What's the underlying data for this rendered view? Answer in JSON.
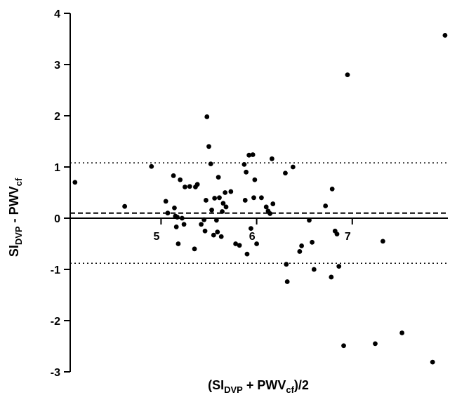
{
  "chart_data": {
    "type": "scatter",
    "title": "",
    "xlabel": "(SI_DVP + PWV_cf)/2",
    "ylabel": "SI_DVP - PWV_cf",
    "xlabel_parts": {
      "open": "(SI",
      "sub1": "DVP",
      "mid": " + PWV",
      "sub2": "cf",
      "close": ")/2"
    },
    "ylabel_parts": {
      "main1": "SI",
      "sub1": "DVP",
      "mid": " - PWV",
      "sub2": "cf"
    },
    "xlim": [
      4.05,
      8.0
    ],
    "ylim": [
      -3.0,
      4.0
    ],
    "x_ticks": [
      5,
      6,
      7
    ],
    "x_tick_labels": [
      "5",
      "6",
      "7"
    ],
    "y_ticks": [
      -3,
      -2,
      -1,
      0,
      1,
      2,
      3,
      4
    ],
    "y_tick_labels": [
      "-3",
      "-2",
      "-1",
      "0",
      "1",
      "2",
      "3",
      "4"
    ],
    "grid": false,
    "legend": "none",
    "reference_lines": [
      {
        "name": "upper limit of agreement",
        "y": 1.08,
        "style": "dotted"
      },
      {
        "name": "mean difference",
        "y": 0.1,
        "style": "dashed"
      },
      {
        "name": "lower limit of agreement",
        "y": -0.88,
        "style": "dotted"
      },
      {
        "name": "zero line",
        "y": 0.0,
        "style": "solid"
      }
    ],
    "points": [
      {
        "x": 4.1,
        "y": 0.7
      },
      {
        "x": 4.62,
        "y": 0.23
      },
      {
        "x": 4.9,
        "y": 1.01
      },
      {
        "x": 5.05,
        "y": 0.33
      },
      {
        "x": 5.07,
        "y": 0.1
      },
      {
        "x": 5.13,
        "y": 0.83
      },
      {
        "x": 5.14,
        "y": 0.2
      },
      {
        "x": 5.15,
        "y": 0.04
      },
      {
        "x": 5.16,
        "y": -0.17
      },
      {
        "x": 5.17,
        "y": 0.02
      },
      {
        "x": 5.18,
        "y": -0.5
      },
      {
        "x": 5.2,
        "y": 0.75
      },
      {
        "x": 5.22,
        "y": 0.0
      },
      {
        "x": 5.24,
        "y": -0.12
      },
      {
        "x": 5.25,
        "y": 0.61
      },
      {
        "x": 5.3,
        "y": 0.62
      },
      {
        "x": 5.35,
        "y": -0.6
      },
      {
        "x": 5.36,
        "y": 0.61
      },
      {
        "x": 5.38,
        "y": 0.66
      },
      {
        "x": 5.42,
        "y": -0.12
      },
      {
        "x": 5.45,
        "y": -0.03
      },
      {
        "x": 5.46,
        "y": -0.25
      },
      {
        "x": 5.47,
        "y": 0.35
      },
      {
        "x": 5.48,
        "y": 1.98
      },
      {
        "x": 5.5,
        "y": 1.4
      },
      {
        "x": 5.52,
        "y": 1.06
      },
      {
        "x": 5.53,
        "y": 0.16
      },
      {
        "x": 5.55,
        "y": -0.33
      },
      {
        "x": 5.56,
        "y": 0.39
      },
      {
        "x": 5.58,
        "y": -0.04
      },
      {
        "x": 5.59,
        "y": -0.27
      },
      {
        "x": 5.6,
        "y": 0.8
      },
      {
        "x": 5.61,
        "y": 0.4
      },
      {
        "x": 5.63,
        "y": -0.36
      },
      {
        "x": 5.64,
        "y": 0.13
      },
      {
        "x": 5.65,
        "y": 0.29
      },
      {
        "x": 5.67,
        "y": 0.5
      },
      {
        "x": 5.68,
        "y": 0.22
      },
      {
        "x": 5.73,
        "y": 0.52
      },
      {
        "x": 5.78,
        "y": -0.5
      },
      {
        "x": 5.82,
        "y": -0.53
      },
      {
        "x": 5.87,
        "y": 1.05
      },
      {
        "x": 5.88,
        "y": 0.35
      },
      {
        "x": 5.89,
        "y": 0.9
      },
      {
        "x": 5.9,
        "y": -0.7
      },
      {
        "x": 5.92,
        "y": 1.23
      },
      {
        "x": 5.94,
        "y": -0.2
      },
      {
        "x": 5.96,
        "y": 1.24
      },
      {
        "x": 5.97,
        "y": 0.4
      },
      {
        "x": 5.98,
        "y": 0.75
      },
      {
        "x": 6.0,
        "y": -0.5
      },
      {
        "x": 6.05,
        "y": 0.4
      },
      {
        "x": 6.1,
        "y": 0.22
      },
      {
        "x": 6.12,
        "y": 0.14
      },
      {
        "x": 6.14,
        "y": 0.09
      },
      {
        "x": 6.16,
        "y": 1.16
      },
      {
        "x": 6.17,
        "y": 0.28
      },
      {
        "x": 6.3,
        "y": 0.88
      },
      {
        "x": 6.31,
        "y": -0.9
      },
      {
        "x": 6.32,
        "y": -1.24
      },
      {
        "x": 6.38,
        "y": 1.0
      },
      {
        "x": 6.45,
        "y": -0.65
      },
      {
        "x": 6.47,
        "y": -0.54
      },
      {
        "x": 6.55,
        "y": -0.04
      },
      {
        "x": 6.58,
        "y": -0.47
      },
      {
        "x": 6.6,
        "y": -1.0
      },
      {
        "x": 6.72,
        "y": 0.24
      },
      {
        "x": 6.78,
        "y": -1.15
      },
      {
        "x": 6.79,
        "y": 0.57
      },
      {
        "x": 6.82,
        "y": -0.25
      },
      {
        "x": 6.84,
        "y": -0.31
      },
      {
        "x": 6.86,
        "y": -0.94
      },
      {
        "x": 6.91,
        "y": -2.49
      },
      {
        "x": 6.95,
        "y": 2.8
      },
      {
        "x": 7.24,
        "y": -2.45
      },
      {
        "x": 7.32,
        "y": -0.45
      },
      {
        "x": 7.52,
        "y": -2.24
      },
      {
        "x": 7.84,
        "y": -2.81
      },
      {
        "x": 7.97,
        "y": 3.57
      }
    ]
  }
}
